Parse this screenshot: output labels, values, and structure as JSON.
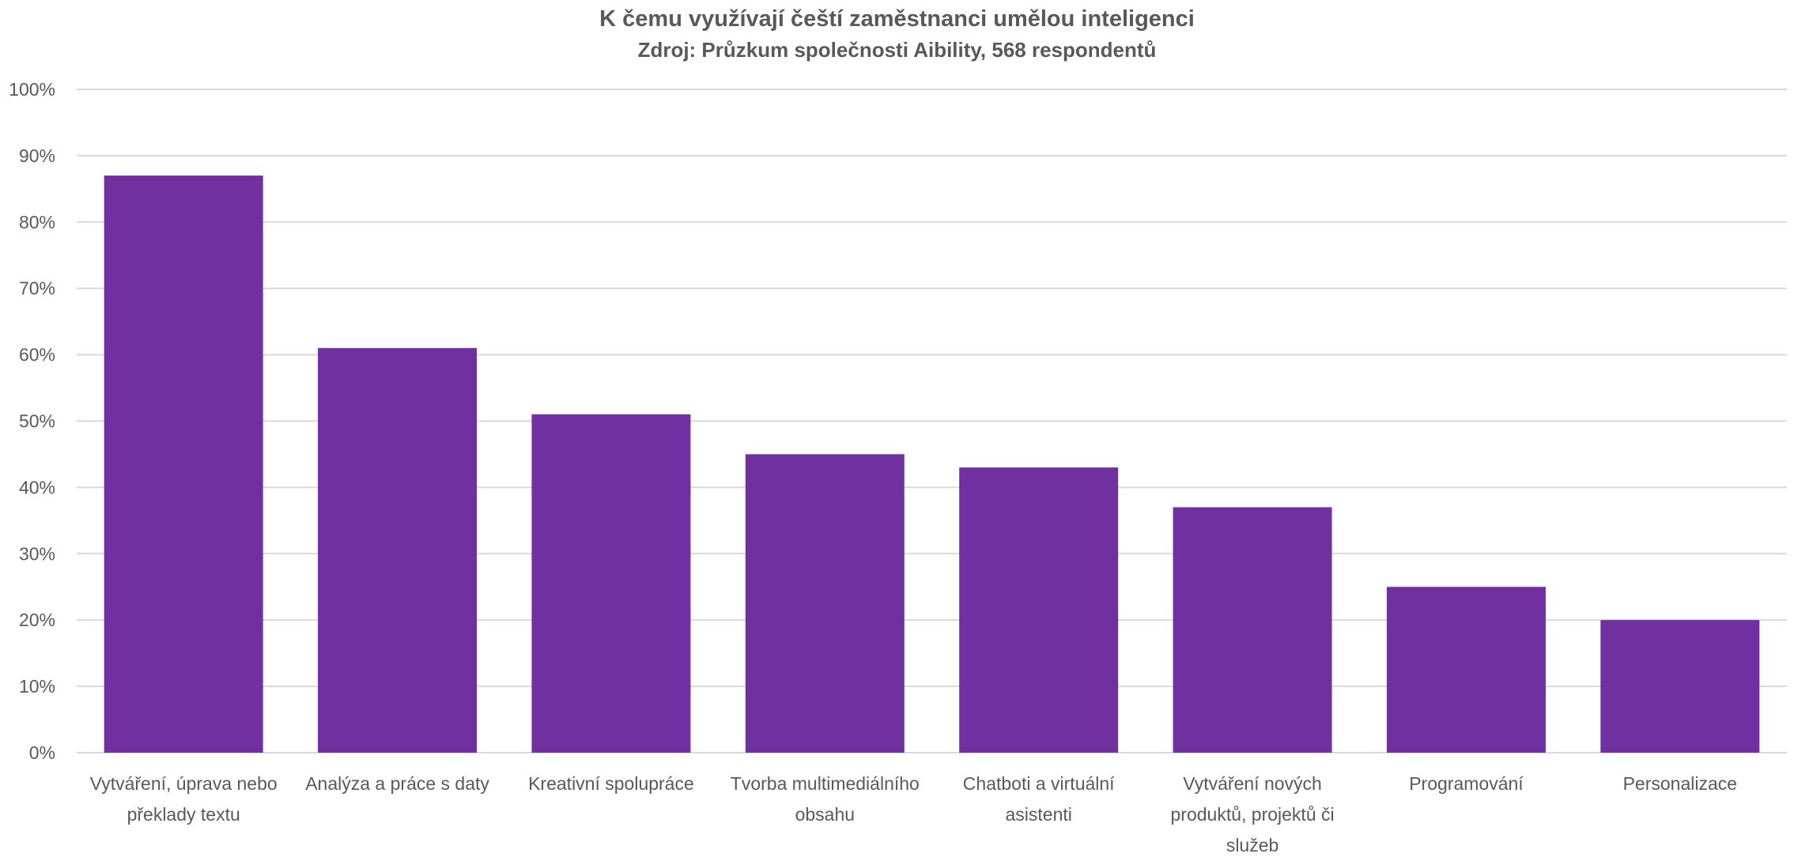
{
  "chart_data": {
    "type": "bar",
    "title": "K čemu využívají čeští zaměstnanci umělou inteligenci",
    "subtitle": "Zdroj: Průzkum společnosti Aibility, 568 respondentů",
    "categories": [
      "Vytváření, úprava nebo překlady textu",
      "Analýza a práce s daty",
      "Kreativní spolupráce",
      "Tvorba multimediálního obsahu",
      "Chatboti a virtuální asistenti",
      "Vytváření nových produktů, projektů či služeb",
      "Programování",
      "Personalizace"
    ],
    "values": [
      87,
      61,
      51,
      45,
      43,
      37,
      25,
      20
    ],
    "ylim": [
      0,
      100
    ],
    "yticks": [
      "0%",
      "10%",
      "20%",
      "30%",
      "40%",
      "50%",
      "60%",
      "70%",
      "80%",
      "90%",
      "100%"
    ],
    "xlabel": "",
    "ylabel": "",
    "grid": true,
    "legend": "none",
    "bar_color": "#7030A0"
  }
}
